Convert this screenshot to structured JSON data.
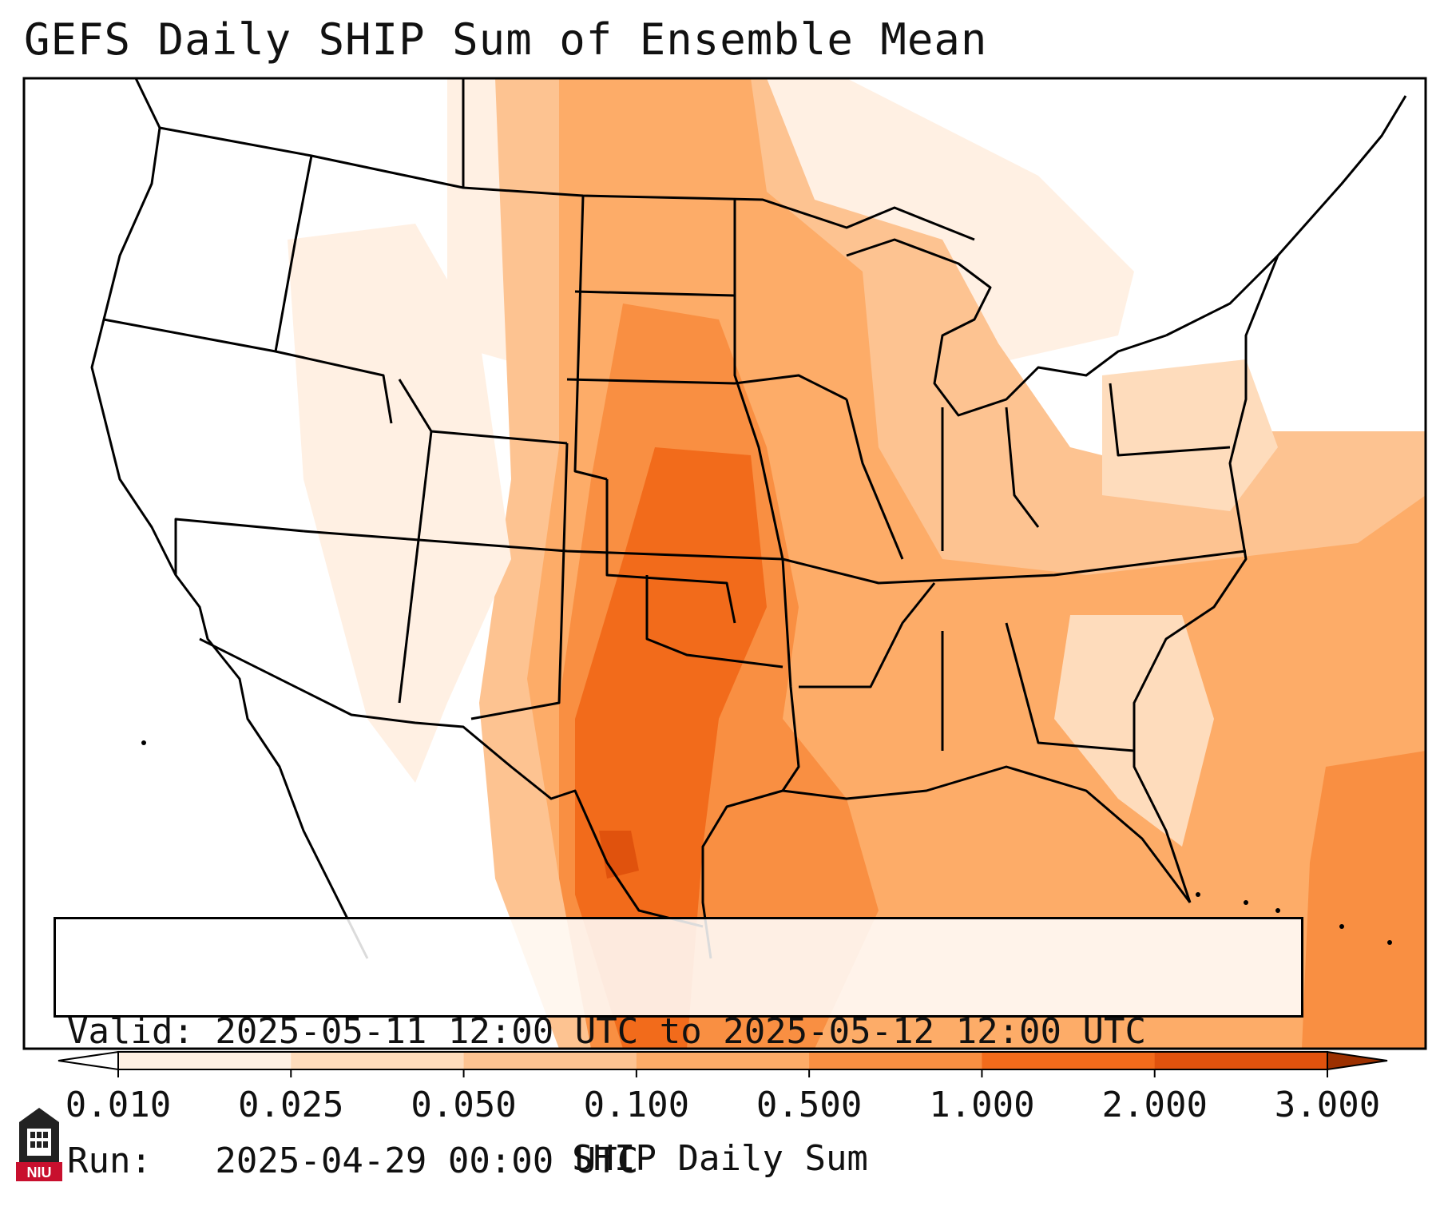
{
  "title": "GEFS Daily SHIP Sum of Ensemble Mean",
  "info": {
    "valid_line": "Valid: 2025-05-11 12:00 UTC to 2025-05-12 12:00 UTC",
    "run_line": "Run:   2025-04-29 00:00 UTC"
  },
  "colorbar": {
    "label": "SHIP Daily Sum",
    "ticks": [
      "0.010",
      "0.025",
      "0.050",
      "0.100",
      "0.500",
      "1.000",
      "2.000",
      "3.000"
    ],
    "colors": [
      "#fff0e3",
      "#fedcbc",
      "#fdc391",
      "#fdac68",
      "#f98f42",
      "#f26b1b",
      "#e0520d",
      "#c23d04"
    ],
    "extend_low_color": "#ffffff",
    "extend_high_color": "#9c3000"
  },
  "logo": {
    "text": "NIU",
    "color": "#c8102e"
  }
}
